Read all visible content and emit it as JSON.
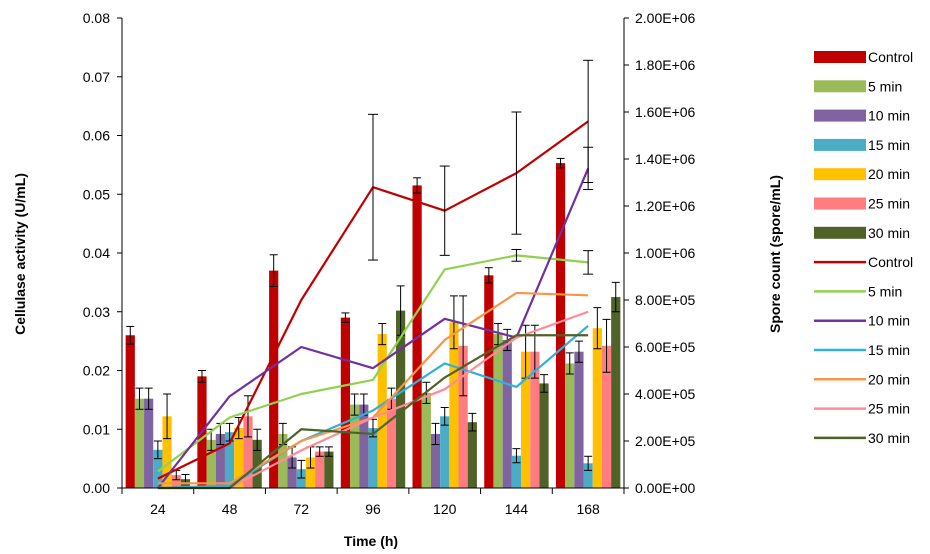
{
  "chart_data": {
    "type": "bar",
    "categories": [
      "24",
      "48",
      "72",
      "96",
      "120",
      "144",
      "168"
    ],
    "xlabel": "Time (h)",
    "ylabel": "Cellulase activity (U/mL)",
    "y2label": "Spore count (spore/mL)",
    "ylim": [
      0,
      0.08
    ],
    "y2lim": [
      0,
      2000000
    ],
    "y_ticks": [
      "0.00",
      "0.01",
      "0.02",
      "0.03",
      "0.04",
      "0.05",
      "0.06",
      "0.07",
      "0.08"
    ],
    "y2_ticks": [
      "0.00E+00",
      "2.00E+05",
      "4.00E+05",
      "6.00E+05",
      "8.00E+05",
      "1.00E+06",
      "1.20E+06",
      "1.40E+06",
      "1.60E+06",
      "1.80E+06",
      "2.00E+06"
    ],
    "grid": false,
    "legend_position": "right",
    "bar_series": [
      {
        "name": "Control",
        "color": "#c00000",
        "values": [
          0.026,
          0.019,
          0.037,
          0.029,
          0.0515,
          0.0362,
          0.0553
        ],
        "errors": [
          0.0015,
          0.001,
          0.0027,
          0.0008,
          0.0013,
          0.0013,
          0.0008
        ]
      },
      {
        "name": "5 min",
        "color": "#9bbb59",
        "values": [
          0.0152,
          0.0082,
          0.0092,
          0.0142,
          0.0162,
          0.0262,
          0.0212
        ],
        "errors": [
          0.0018,
          0.0018,
          0.0018,
          0.0018,
          0.0018,
          0.0018,
          0.0018
        ]
      },
      {
        "name": "10 min",
        "color": "#8064a2",
        "values": [
          0.0152,
          0.0092,
          0.0052,
          0.0142,
          0.0092,
          0.0252,
          0.0232
        ],
        "errors": [
          0.0018,
          0.0018,
          0.0018,
          0.0018,
          0.0018,
          0.0018,
          0.0018
        ]
      },
      {
        "name": "15 min",
        "color": "#4bacc6",
        "values": [
          0.0065,
          0.0095,
          0.0032,
          0.0102,
          0.0122,
          0.0055,
          0.0042
        ],
        "errors": [
          0.0015,
          0.0015,
          0.0015,
          0.0015,
          0.0015,
          0.0012,
          0.0012
        ]
      },
      {
        "name": "20 min",
        "color": "#ffc000",
        "values": [
          0.0122,
          0.0102,
          0.0052,
          0.0262,
          0.0282,
          0.0232,
          0.0272
        ],
        "errors": [
          0.0038,
          0.0018,
          0.0018,
          0.0018,
          0.0045,
          0.0045,
          0.0035
        ]
      },
      {
        "name": "25 min",
        "color": "#ff7c80",
        "values": [
          0.0022,
          0.0122,
          0.0062,
          0.0152,
          0.0242,
          0.0232,
          0.0242
        ],
        "errors": [
          0.0008,
          0.0035,
          0.0008,
          0.0018,
          0.0085,
          0.0045,
          0.0045
        ]
      },
      {
        "name": "30 min",
        "color": "#4f6228",
        "values": [
          0.0015,
          0.0082,
          0.0062,
          0.0302,
          0.0112,
          0.0178,
          0.0325
        ],
        "errors": [
          0.0008,
          0.0018,
          0.0008,
          0.0042,
          0.0015,
          0.0015,
          0.0025
        ]
      }
    ],
    "line_series": [
      {
        "name": "Control",
        "color": "#c00000",
        "values": [
          40000,
          190000,
          800000,
          1280000,
          1180000,
          1340000,
          1560000
        ],
        "errors": [
          0,
          0,
          0,
          310000,
          190000,
          260000,
          260000
        ]
      },
      {
        "name": " 5 min",
        "color": "#92d050",
        "values": [
          70000,
          300000,
          400000,
          460000,
          930000,
          990000,
          960000
        ],
        "errors": [
          0,
          0,
          0,
          0,
          0,
          25000,
          50000
        ]
      },
      {
        "name": "10 min",
        "color": "#7030a0",
        "values": [
          0,
          390000,
          600000,
          510000,
          720000,
          640000,
          1360000
        ],
        "errors": [
          0,
          0,
          0,
          0,
          0,
          0,
          90000
        ]
      },
      {
        "name": "15 min",
        "color": "#31b0d8",
        "values": [
          0,
          10000,
          200000,
          330000,
          530000,
          430000,
          690000
        ],
        "errors": [
          0,
          0,
          0,
          0,
          0,
          0,
          0
        ]
      },
      {
        "name": "20 min",
        "color": "#f79646",
        "values": [
          20000,
          20000,
          200000,
          300000,
          630000,
          830000,
          820000
        ],
        "errors": [
          0,
          0,
          0,
          0,
          0,
          0,
          0
        ]
      },
      {
        "name": "25 min",
        "color": "#ff8b94",
        "values": [
          0,
          0,
          160000,
          300000,
          420000,
          640000,
          750000
        ],
        "errors": [
          0,
          0,
          0,
          0,
          0,
          0,
          0
        ]
      },
      {
        "name": "30 min",
        "color": "#4f6228",
        "values": [
          0,
          0,
          250000,
          230000,
          470000,
          650000,
          650000
        ],
        "errors": [
          0,
          0,
          0,
          0,
          0,
          0,
          0
        ]
      }
    ]
  }
}
